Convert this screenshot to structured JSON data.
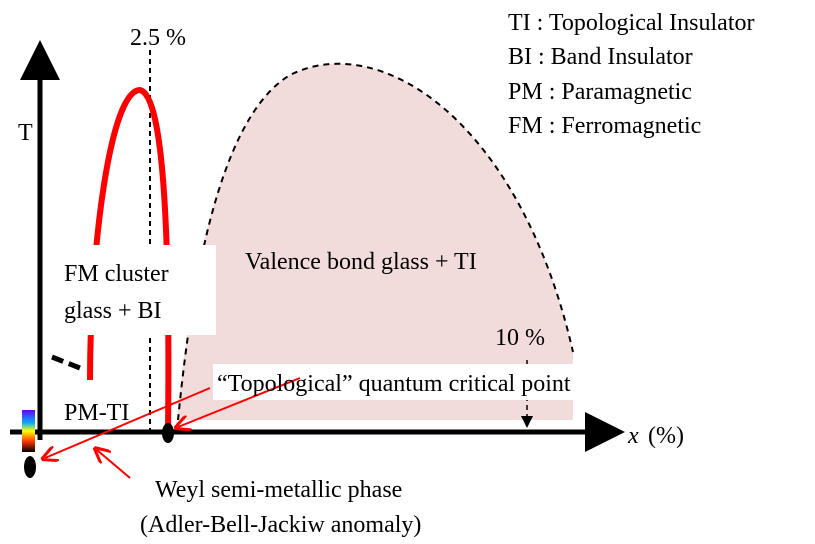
{
  "axis": {
    "y_label": "T",
    "x_label": "x",
    "x_unit": "(%)"
  },
  "legend": [
    "TI : Topological Insulator",
    "BI : Band Insulator",
    "PM : Paramagnetic",
    "FM : Ferromagnetic"
  ],
  "markers": {
    "left": "2.5 %",
    "right": "10 %"
  },
  "regions": {
    "fm_line1": "FM cluster",
    "fm_line2": "glass + BI",
    "vbg": "Valence bond glass + TI",
    "pm": "PM-TI"
  },
  "annotations": {
    "qcp": "“Topological” quantum critical point",
    "weyl1": "Weyl semi-metallic phase",
    "weyl2": "(Adler-Bell-Jackiw anomaly)"
  }
}
